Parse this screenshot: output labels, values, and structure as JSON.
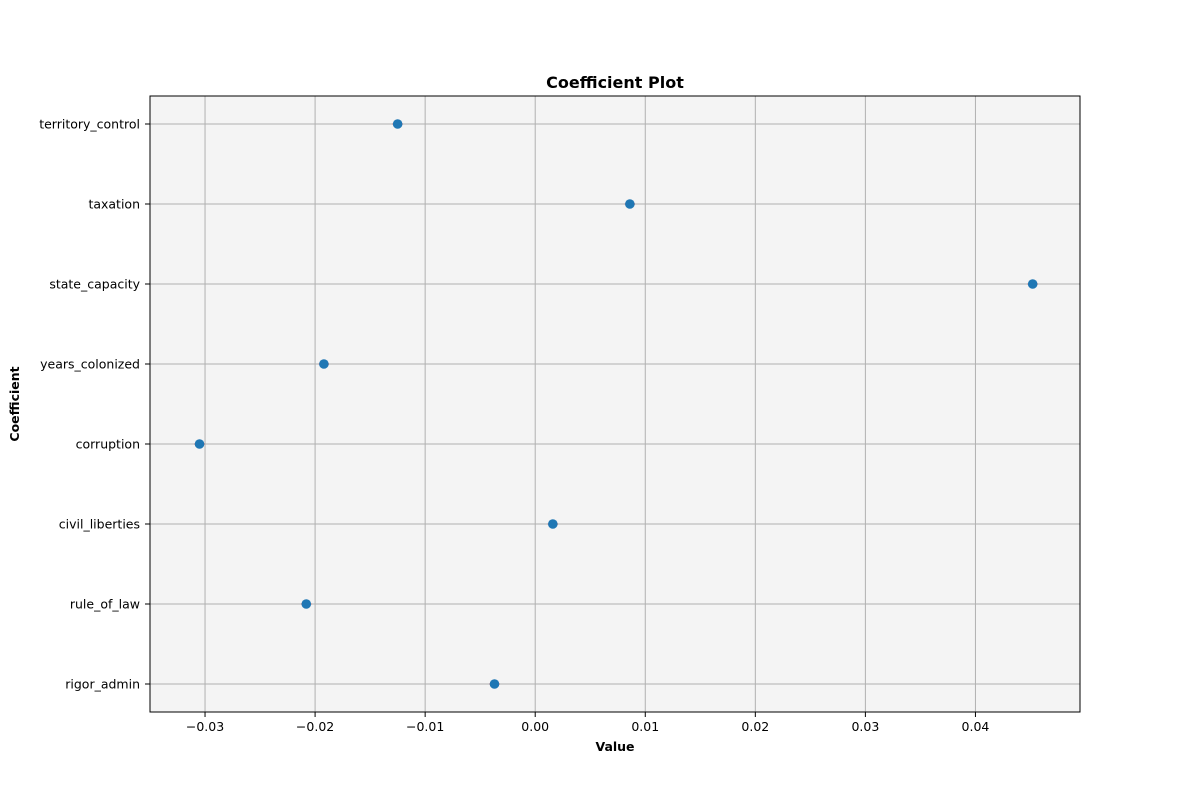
{
  "chart_data": {
    "type": "scatter",
    "title": "Coefficient Plot",
    "xlabel": "Value",
    "ylabel": "Coefficient",
    "categories": [
      "rigor_admin",
      "rule_of_law",
      "civil_liberties",
      "corruption",
      "years_colonized",
      "state_capacity",
      "taxation",
      "territory_control"
    ],
    "values": [
      -0.0037,
      -0.0208,
      0.0016,
      -0.0305,
      -0.0192,
      0.0452,
      0.0086,
      -0.0125
    ],
    "xlim": [
      -0.035,
      0.0495
    ],
    "xticks": [
      -0.03,
      -0.02,
      -0.01,
      0.0,
      0.01,
      0.02,
      0.03,
      0.04
    ],
    "xtick_labels": [
      "−0.03",
      "−0.02",
      "−0.01",
      "0.00",
      "0.01",
      "0.02",
      "0.03",
      "0.04"
    ],
    "grid": true,
    "colors": {
      "marker": "#1f77b4",
      "errorbar": "#d62728",
      "plot_background": "#f4f4f4",
      "grid": "#b0b0b0"
    }
  }
}
